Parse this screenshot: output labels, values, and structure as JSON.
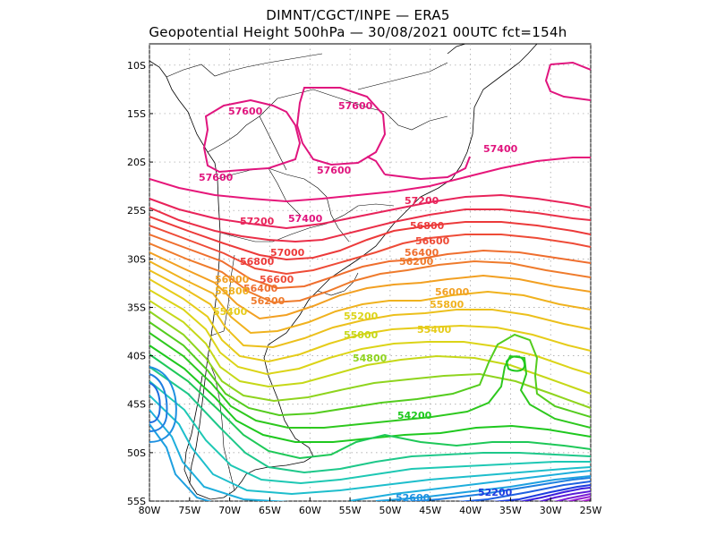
{
  "header": {
    "line1": "DIMNT/CGCT/INPE —  ERA5",
    "line2": "Geopotential Height 500hPa —  30/08/2021 00UTC fct=154h"
  },
  "axes": {
    "lon_labels": [
      "80W",
      "75W",
      "70W",
      "65W",
      "60W",
      "55W",
      "50W",
      "45W",
      "40W",
      "35W",
      "30W",
      "25W"
    ],
    "lat_labels": [
      "10S",
      "15S",
      "20S",
      "25S",
      "30S",
      "35S",
      "40S",
      "45S",
      "50S",
      "55S"
    ]
  },
  "contour_labels": [
    {
      "text": "57600",
      "color": "#e0157e"
    },
    {
      "text": "57600",
      "color": "#e0157e"
    },
    {
      "text": "57600",
      "color": "#e0157e"
    },
    {
      "text": "57600",
      "color": "#e0157e"
    },
    {
      "text": "57400",
      "color": "#e0157e"
    },
    {
      "text": "57400",
      "color": "#e0157e"
    },
    {
      "text": "57200",
      "color": "#e8235a"
    },
    {
      "text": "57200",
      "color": "#e8235a"
    },
    {
      "text": "57000",
      "color": "#ec3a3a"
    },
    {
      "text": "56800",
      "color": "#ec3a3a"
    },
    {
      "text": "56800",
      "color": "#ec3a3a"
    },
    {
      "text": "56600",
      "color": "#ee4b37"
    },
    {
      "text": "56600",
      "color": "#ee4b37"
    },
    {
      "text": "56400",
      "color": "#ef6e2e"
    },
    {
      "text": "56400",
      "color": "#ef6e2e"
    },
    {
      "text": "56200",
      "color": "#ef7b2c"
    },
    {
      "text": "56200",
      "color": "#ef7b2c"
    },
    {
      "text": "56000",
      "color": "#f2a022"
    },
    {
      "text": "56000",
      "color": "#f2a022"
    },
    {
      "text": "55800",
      "color": "#f0b21e"
    },
    {
      "text": "55800",
      "color": "#f0b21e"
    },
    {
      "text": "55400",
      "color": "#e6cc1a"
    },
    {
      "text": "55400",
      "color": "#e6cc1a"
    },
    {
      "text": "55200",
      "color": "#dcd418"
    },
    {
      "text": "55000",
      "color": "#c6d818"
    },
    {
      "text": "54800",
      "color": "#8fd41e"
    },
    {
      "text": "54200",
      "color": "#1ec81e"
    },
    {
      "text": "52600",
      "color": "#1e90e0"
    },
    {
      "text": "52200",
      "color": "#1e3ce0"
    }
  ]
}
